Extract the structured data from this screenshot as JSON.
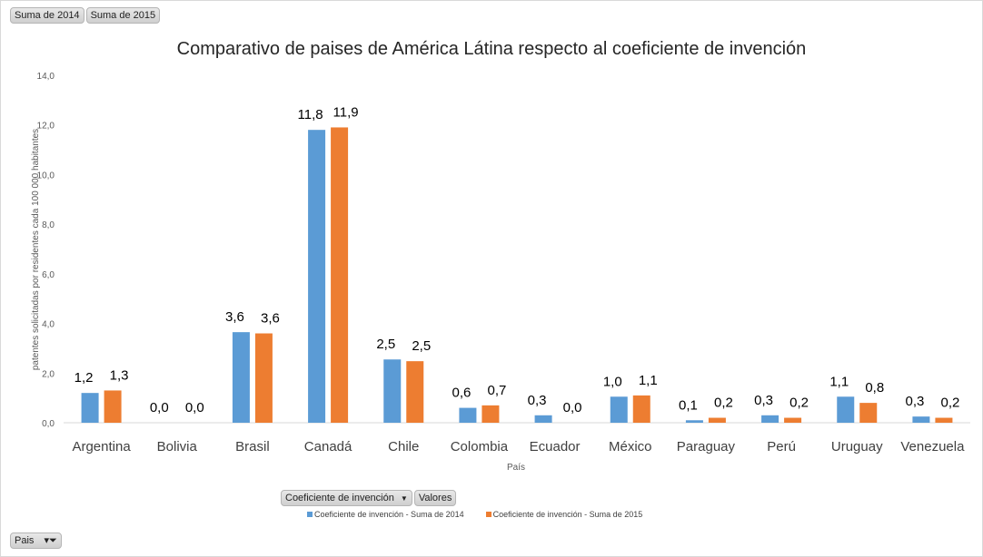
{
  "pivot_buttons": {
    "top": [
      "Suma de 2014",
      "Suma de 2015"
    ],
    "series_field": "Coeficiente de invención",
    "values": "Valores",
    "axis_field": "Pais"
  },
  "colors": {
    "s2014": "#5b9bd5",
    "s2015": "#ed7d31"
  },
  "chart_data": {
    "type": "bar",
    "title": "Comparativo de paises de América Látina respecto al coeficiente de invención",
    "xlabel": "País",
    "ylabel": "patentes solicitadas por residentes cada 100 000 habitantes",
    "ylim": [
      0,
      14
    ],
    "yticks": [
      "0,0",
      "2,0",
      "4,0",
      "6,0",
      "8,0",
      "10,0",
      "12,0",
      "14,0"
    ],
    "grid": false,
    "legend_position": "bottom",
    "categories": [
      "Argentina",
      "Bolivia",
      "Brasil",
      "Canadá",
      "Chile",
      "Colombia",
      "Ecuador",
      "México",
      "Paraguay",
      "Perú",
      "Uruguay",
      "Venezuela"
    ],
    "series": [
      {
        "name": "Coeficiente de invención - Suma de 2014",
        "values": [
          1.2,
          0.0,
          3.65,
          11.8,
          2.55,
          0.6,
          0.3,
          1.05,
          0.1,
          0.3,
          1.05,
          0.25
        ],
        "labels": [
          "1,2",
          "0,0",
          "3,6",
          "11,8",
          "2,5",
          "0,6",
          "0,3",
          "1,0",
          "0,1",
          "0,3",
          "1,1",
          "0,3"
        ]
      },
      {
        "name": "Coeficiente de invención - Suma de 2015",
        "values": [
          1.3,
          0.0,
          3.6,
          11.9,
          2.48,
          0.7,
          0.0,
          1.1,
          0.2,
          0.2,
          0.8,
          0.2
        ],
        "labels": [
          "1,3",
          "0,0",
          "3,6",
          "11,9",
          "2,5",
          "0,7",
          "0,0",
          "1,1",
          "0,2",
          "0,2",
          "0,8",
          "0,2"
        ]
      }
    ]
  }
}
